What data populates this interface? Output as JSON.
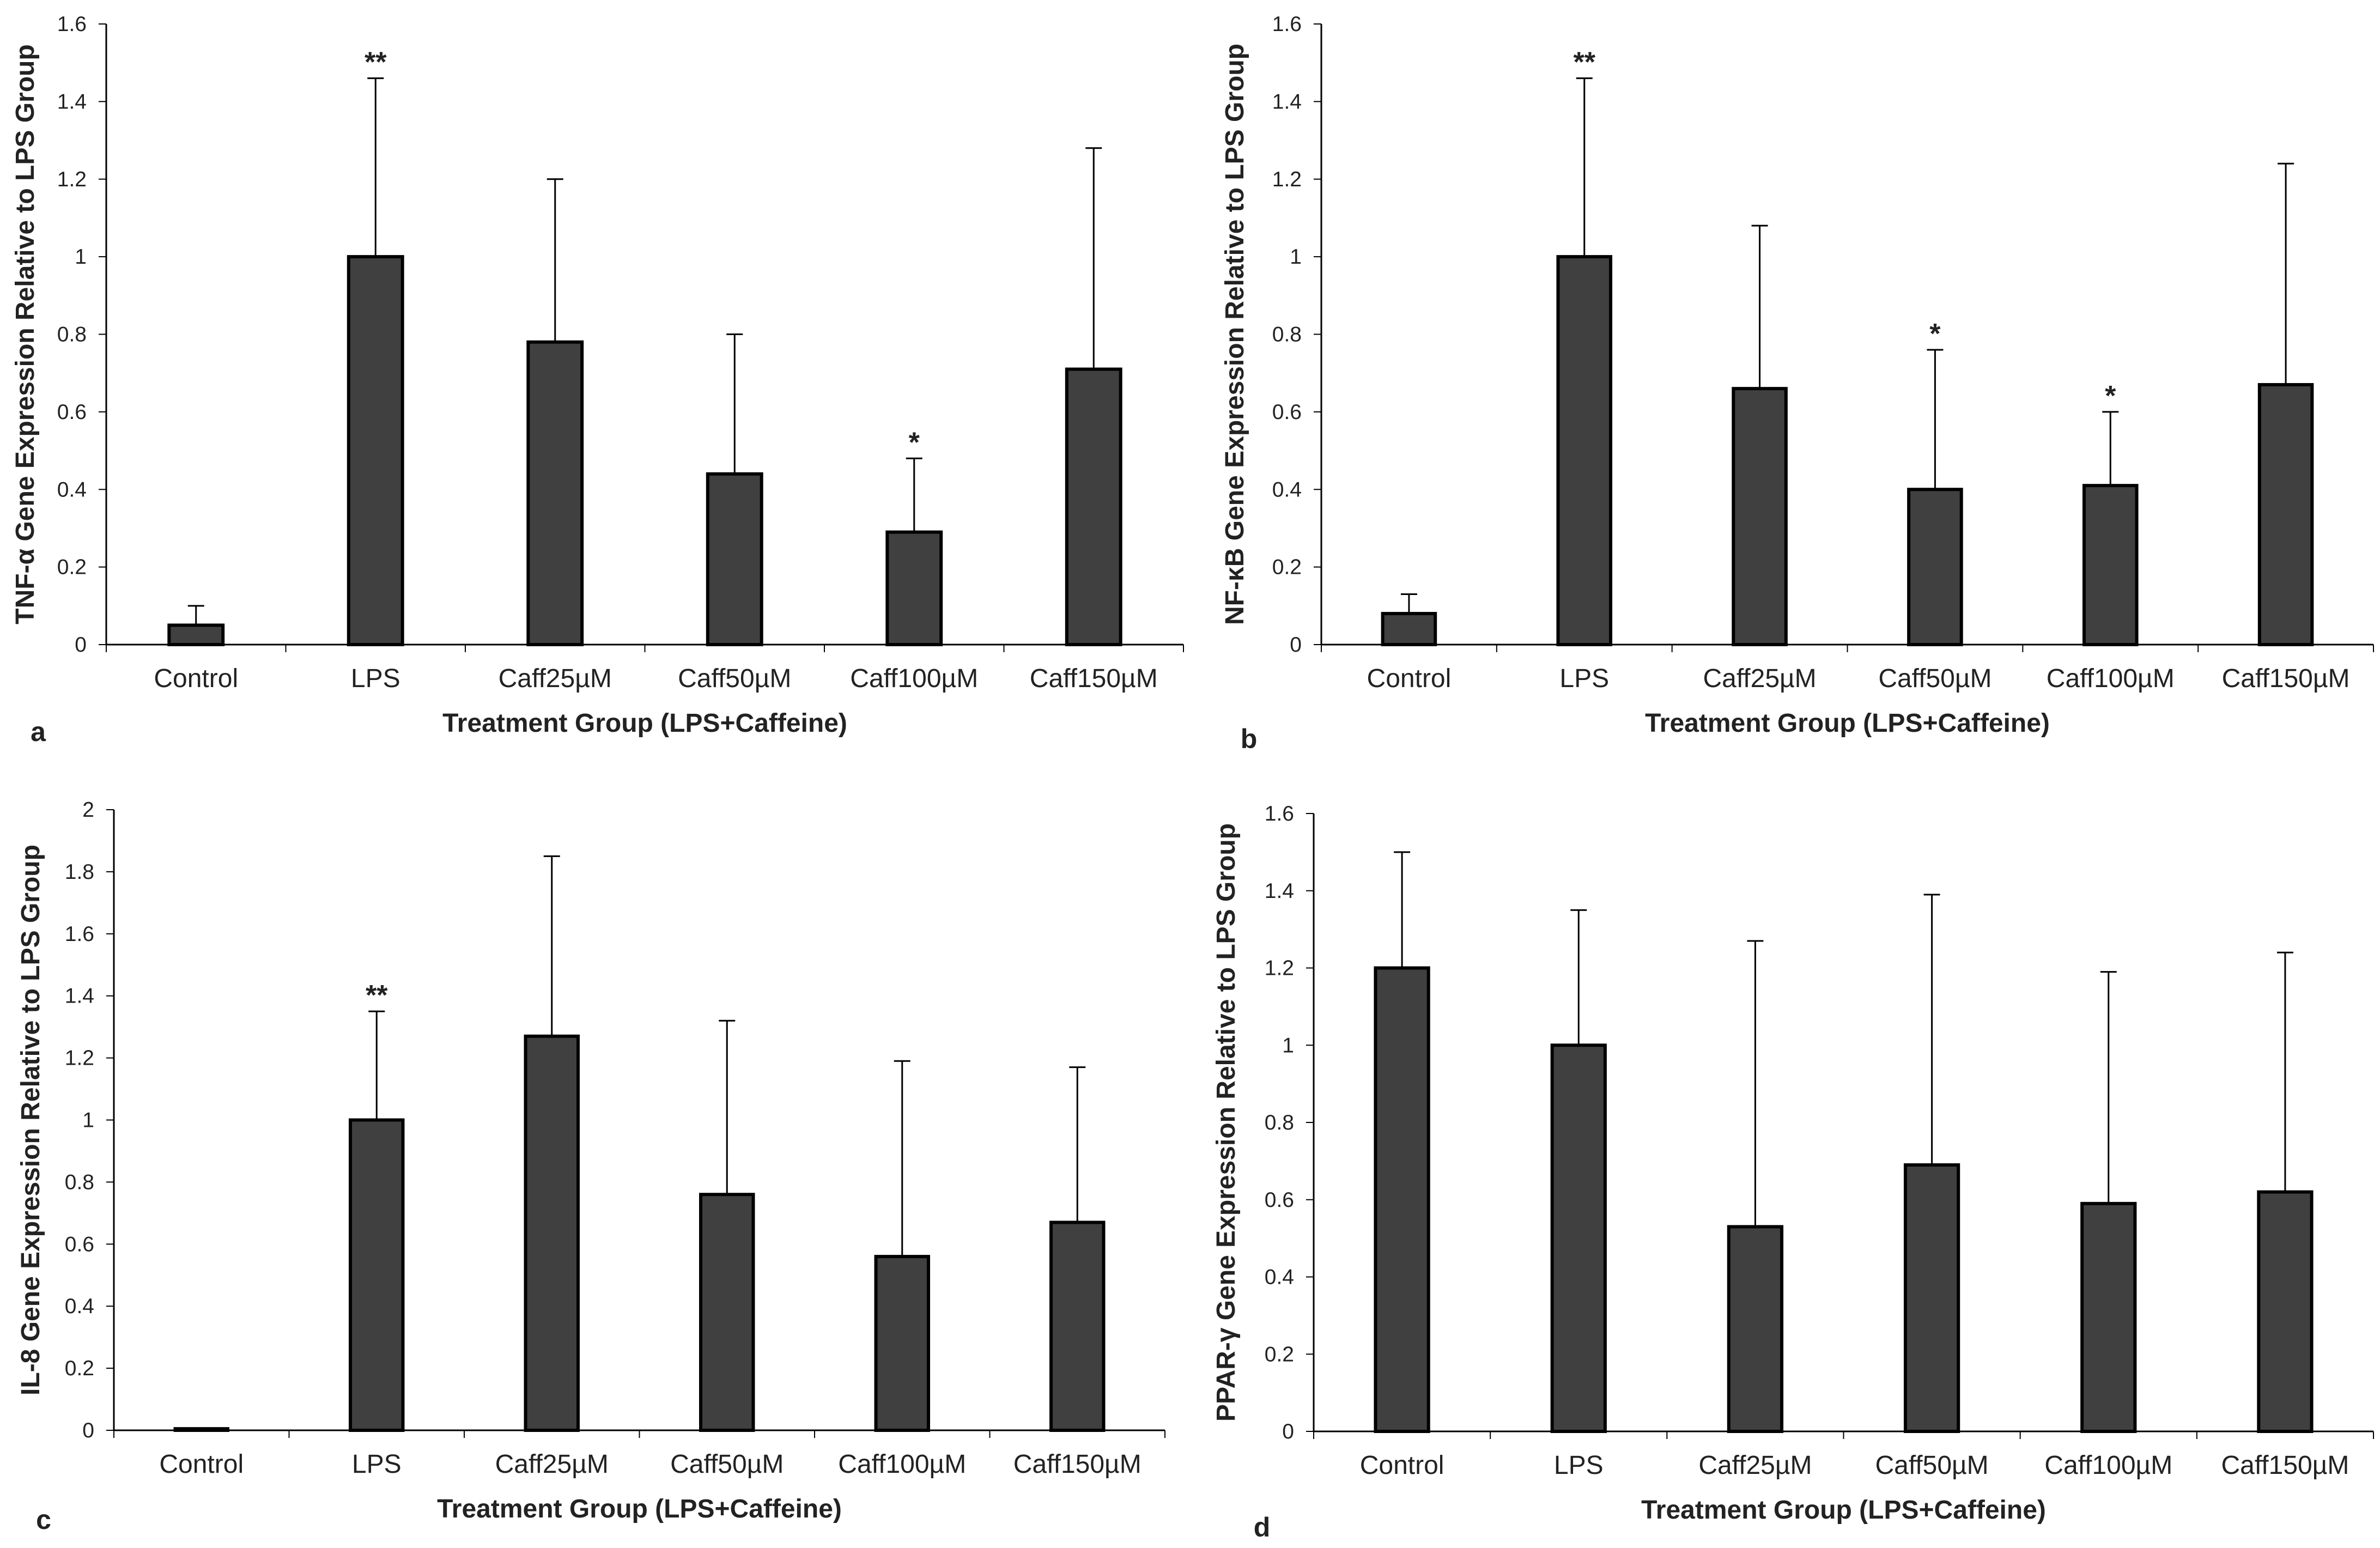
{
  "colors": {
    "bar_fill": "#404040",
    "bar_edge": "#000000",
    "axis": "#000000",
    "text": "#222222"
  },
  "chart_data": [
    {
      "panel": "a",
      "type": "bar",
      "ylabel": "TNF-α Gene Expression Relative to LPS Group",
      "xlabel": "Treatment Group (LPS+Caffeine)",
      "categories": [
        "Control",
        "LPS",
        "Caff25µM",
        "Caff50µM",
        "Caff100µM",
        "Caff150µM"
      ],
      "values": [
        0.05,
        1.0,
        0.78,
        0.44,
        0.29,
        0.71
      ],
      "errors": [
        0.05,
        0.46,
        0.42,
        0.36,
        0.19,
        0.57
      ],
      "significance": [
        "",
        "**",
        "",
        "",
        "*",
        ""
      ],
      "ylim": [
        0,
        1.6
      ],
      "yticks": [
        "0",
        "0.2",
        "0.4",
        "0.6",
        "0.8",
        "1",
        "1.2",
        "1.4",
        "1.6"
      ]
    },
    {
      "panel": "b",
      "type": "bar",
      "ylabel": "NF-κB Gene Expression Relative to LPS Group",
      "xlabel": "Treatment Group (LPS+Caffeine)",
      "categories": [
        "Control",
        "LPS",
        "Caff25µM",
        "Caff50µM",
        "Caff100µM",
        "Caff150µM"
      ],
      "values": [
        0.08,
        1.0,
        0.66,
        0.4,
        0.41,
        0.67
      ],
      "errors": [
        0.05,
        0.46,
        0.42,
        0.36,
        0.19,
        0.57
      ],
      "significance": [
        "",
        "**",
        "",
        "*",
        "*",
        ""
      ],
      "ylim": [
        0,
        1.6
      ],
      "yticks": [
        "0",
        "0.2",
        "0.4",
        "0.6",
        "0.8",
        "1",
        "1.2",
        "1.4",
        "1.6"
      ]
    },
    {
      "panel": "c",
      "type": "bar",
      "ylabel": "IL-8 Gene Expression Relative to LPS Group",
      "xlabel": "Treatment Group (LPS+Caffeine)",
      "categories": [
        "Control",
        "LPS",
        "Caff25µM",
        "Caff50µM",
        "Caff100µM",
        "Caff150µM"
      ],
      "values": [
        0.005,
        1.0,
        1.27,
        0.76,
        0.56,
        0.67
      ],
      "errors": [
        0,
        0.35,
        0.58,
        0.56,
        0.63,
        0.5
      ],
      "significance": [
        "",
        "**",
        "",
        "",
        "",
        ""
      ],
      "ylim": [
        0,
        2
      ],
      "yticks": [
        "0",
        "0.2",
        "0.4",
        "0.6",
        "0.8",
        "1",
        "1.2",
        "1.4",
        "1.6",
        "1.8",
        "2"
      ]
    },
    {
      "panel": "d",
      "type": "bar",
      "ylabel": "PPAR-γ Gene Expression Relative to LPS Group",
      "xlabel": "Treatment Group (LPS+Caffeine)",
      "categories": [
        "Control",
        "LPS",
        "Caff25µM",
        "Caff50µM",
        "Caff100µM",
        "Caff150µM"
      ],
      "values": [
        1.2,
        1.0,
        0.53,
        0.69,
        0.59,
        0.62
      ],
      "errors": [
        0.3,
        0.35,
        0.74,
        0.7,
        0.6,
        0.62
      ],
      "significance": [
        "",
        "",
        "",
        "",
        "",
        ""
      ],
      "ylim": [
        0,
        1.6
      ],
      "yticks": [
        "0",
        "0.2",
        "0.4",
        "0.6",
        "0.8",
        "1",
        "1.2",
        "1.4",
        "1.6"
      ]
    }
  ]
}
